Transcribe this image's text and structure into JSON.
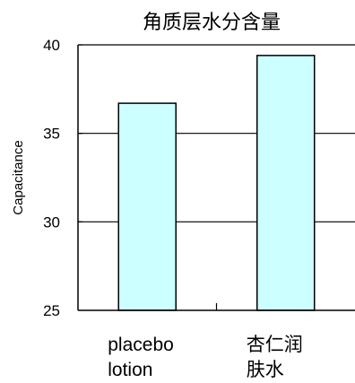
{
  "chart_data": {
    "type": "bar",
    "title": "角质层水分含量",
    "xlabel": "",
    "ylabel": "Capacitance",
    "ylim": [
      25,
      40
    ],
    "yticks": [
      25,
      30,
      35,
      40
    ],
    "grid": true,
    "categories": [
      [
        "placebo",
        "lotion"
      ],
      [
        "杏仁润",
        "肤水"
      ]
    ],
    "values": [
      36.7,
      39.4
    ],
    "colors": {
      "bar_fill": "#ccffff",
      "bar_stroke": "#000000",
      "axis": "#000000"
    }
  }
}
